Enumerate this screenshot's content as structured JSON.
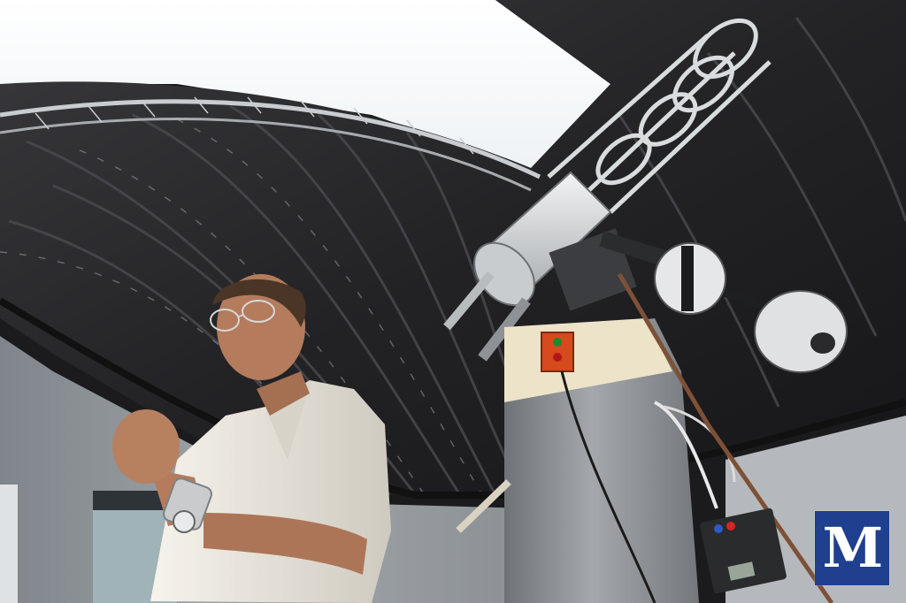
{
  "photo": {
    "logo": {
      "letter": "M",
      "color": "#1f3f8f"
    },
    "palette": {
      "dome": "#2a2a2d",
      "sky": "#ffffff",
      "wall": "#9aa0a5",
      "pier": "#8e9296",
      "shirt": "#ece8df",
      "skin": "#b0785a",
      "telescope": "#d8dadc",
      "button_red": "#d64a1e"
    }
  }
}
